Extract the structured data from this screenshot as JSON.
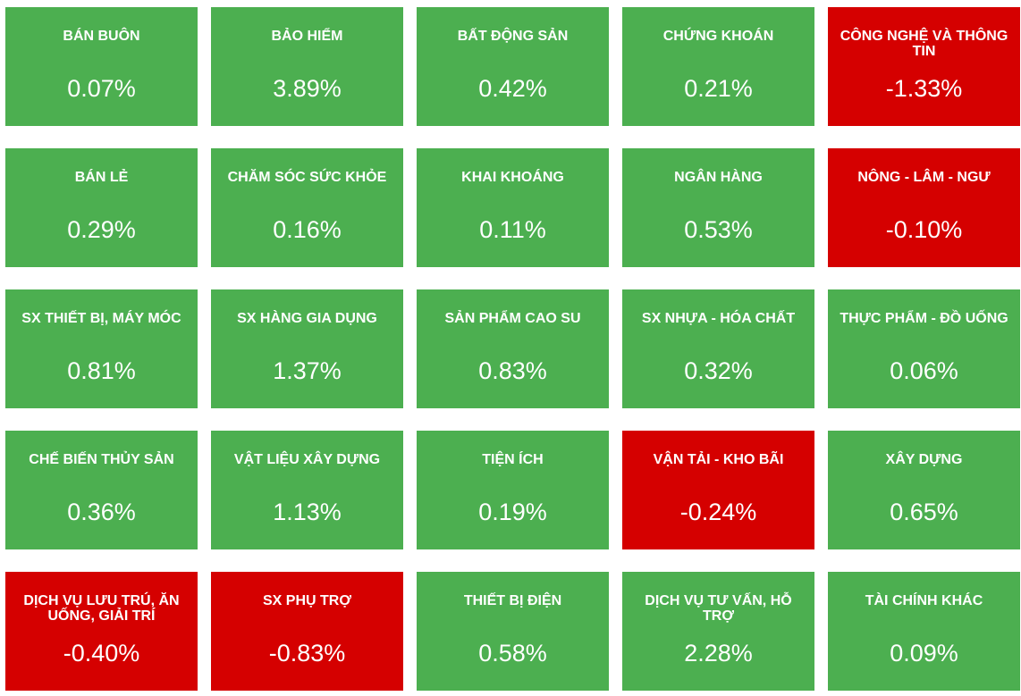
{
  "colors": {
    "up": "#4caf50",
    "down": "#d50000",
    "text": "#ffffff"
  },
  "sectors": [
    {
      "name": "BÁN BUÔN",
      "change": "0.07%",
      "trend": "up"
    },
    {
      "name": "BẢO HIỂM",
      "change": "3.89%",
      "trend": "up"
    },
    {
      "name": "BẤT ĐỘNG SẢN",
      "change": "0.42%",
      "trend": "up"
    },
    {
      "name": "CHỨNG KHOÁN",
      "change": "0.21%",
      "trend": "up"
    },
    {
      "name": "CÔNG NGHỆ VÀ THÔNG TIN",
      "change": "-1.33%",
      "trend": "down"
    },
    {
      "name": "BÁN LẺ",
      "change": "0.29%",
      "trend": "up"
    },
    {
      "name": "CHĂM SÓC SỨC KHỎE",
      "change": "0.16%",
      "trend": "up"
    },
    {
      "name": "KHAI KHOÁNG",
      "change": "0.11%",
      "trend": "up"
    },
    {
      "name": "NGÂN HÀNG",
      "change": "0.53%",
      "trend": "up"
    },
    {
      "name": "NÔNG - LÂM - NGƯ",
      "change": "-0.10%",
      "trend": "down"
    },
    {
      "name": "SX THIẾT BỊ, MÁY MÓC",
      "change": "0.81%",
      "trend": "up"
    },
    {
      "name": "SX HÀNG GIA DỤNG",
      "change": "1.37%",
      "trend": "up"
    },
    {
      "name": "SẢN PHẨM CAO SU",
      "change": "0.83%",
      "trend": "up"
    },
    {
      "name": "SX NHỰA - HÓA CHẤT",
      "change": "0.32%",
      "trend": "up"
    },
    {
      "name": "THỰC PHẨM - ĐỒ UỐNG",
      "change": "0.06%",
      "trend": "up"
    },
    {
      "name": "CHẾ BIẾN THỦY SẢN",
      "change": "0.36%",
      "trend": "up"
    },
    {
      "name": "VẬT LIỆU XÂY DỰNG",
      "change": "1.13%",
      "trend": "up"
    },
    {
      "name": "TIỆN ÍCH",
      "change": "0.19%",
      "trend": "up"
    },
    {
      "name": "VẬN TẢI - KHO BÃI",
      "change": "-0.24%",
      "trend": "down"
    },
    {
      "name": "XÂY DỰNG",
      "change": "0.65%",
      "trend": "up"
    },
    {
      "name": "DỊCH VỤ LƯU TRÚ, ĂN UỐNG, GIẢI TRÍ",
      "change": "-0.40%",
      "trend": "down"
    },
    {
      "name": "SX PHỤ TRỢ",
      "change": "-0.83%",
      "trend": "down"
    },
    {
      "name": "THIẾT BỊ ĐIỆN",
      "change": "0.58%",
      "trend": "up"
    },
    {
      "name": "DỊCH VỤ TƯ VẤN, HỖ TRỢ",
      "change": "2.28%",
      "trend": "up"
    },
    {
      "name": "TÀI CHÍNH KHÁC",
      "change": "0.09%",
      "trend": "up"
    }
  ]
}
